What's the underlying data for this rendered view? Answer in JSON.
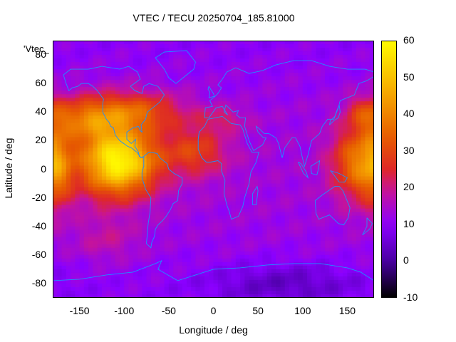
{
  "chart_data": {
    "type": "heatmap",
    "title": "VTEC / TECU 20250704_185.81000",
    "xlabel": "Longitude / deg",
    "ylabel": "Latitude / deg",
    "legend_entry": "'Vtec_",
    "xlim": [
      -180,
      180
    ],
    "ylim": [
      -90,
      90
    ],
    "x_ticks": [
      "-150",
      "-100",
      "-50",
      "0",
      "50",
      "100",
      "150"
    ],
    "x_tick_values": [
      -150,
      -100,
      -50,
      0,
      50,
      100,
      150
    ],
    "y_ticks": [
      "-80",
      "-60",
      "-40",
      "-20",
      "0",
      "20",
      "40",
      "60",
      "80"
    ],
    "y_tick_values": [
      -80,
      -60,
      -40,
      -20,
      0,
      20,
      40,
      60,
      80
    ],
    "colorbar": {
      "ticks": [
        "-10",
        "0",
        "10",
        "20",
        "30",
        "40",
        "50",
        "60"
      ],
      "tick_values": [
        -10,
        0,
        10,
        20,
        30,
        40,
        50,
        60
      ],
      "range": [
        -10,
        60
      ],
      "palette": "black-purple-red-orange-yellow"
    },
    "features": [
      {
        "region": "equatorial Pacific / South America",
        "lon": -100,
        "lat": 5,
        "vtec": 55
      },
      {
        "region": "west Pacific / Indonesia",
        "lon": 165,
        "lat": 5,
        "vtec": 40
      },
      {
        "region": "North America mid-latitudes",
        "lon": -90,
        "lat": 40,
        "vtec": 35
      },
      {
        "region": "Atlantic / West Africa",
        "lon": -15,
        "lat": 10,
        "vtec": 30
      },
      {
        "region": "Indian Ocean",
        "lon": 75,
        "lat": -20,
        "vtec": 10
      },
      {
        "region": "Antarctic",
        "lon": 80,
        "lat": -85,
        "vtec": 2
      }
    ],
    "grid": false,
    "coastlines": true,
    "coastline_color": "#1e90ff"
  }
}
